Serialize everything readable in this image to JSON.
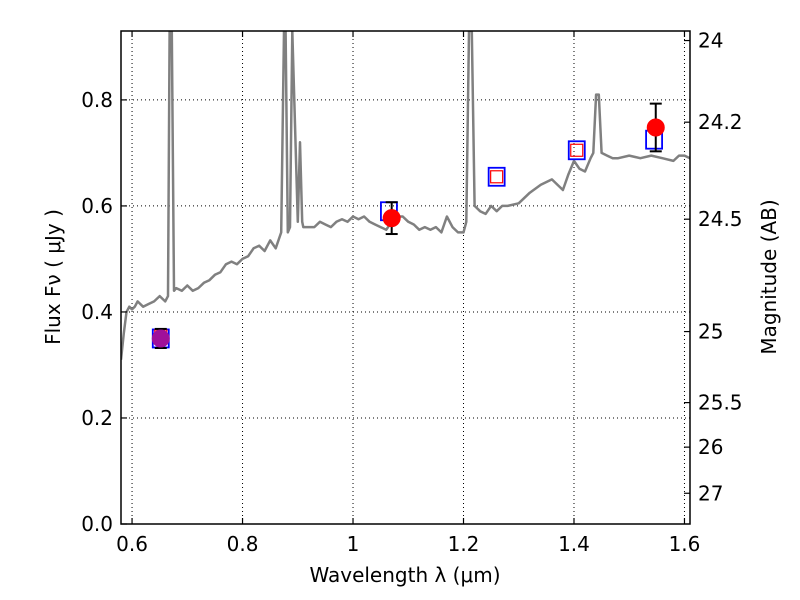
{
  "chart_data": {
    "type": "scatter",
    "title": "",
    "xlabel": "Wavelength  λ (μm)",
    "ylabel": "Flux  Fν  ( μJy )",
    "ylabel_right": "Magnitude (AB)",
    "xlim": [
      0.58,
      1.61
    ],
    "ylim": [
      0.0,
      0.93
    ],
    "grid": true,
    "x_ticks": [
      0.6,
      0.8,
      1.0,
      1.2,
      1.4,
      1.6
    ],
    "x_tick_labels": [
      "0.6",
      "0.8",
      "1",
      "1.2",
      "1.4",
      "1.6"
    ],
    "y_ticks": [
      0.0,
      0.2,
      0.4,
      0.6,
      0.8
    ],
    "y_tick_labels": [
      "0.0",
      "0.2",
      "0.4",
      "0.6",
      "0.8"
    ],
    "right_ticks": [
      {
        "label": "24",
        "flux": 0.912
      },
      {
        "label": "24.2",
        "flux": 0.758
      },
      {
        "label": "24.5",
        "flux": 0.575
      },
      {
        "label": "25",
        "flux": 0.363
      },
      {
        "label": "25.5",
        "flux": 0.229
      },
      {
        "label": "26",
        "flux": 0.145
      },
      {
        "label": "27",
        "flux": 0.058
      }
    ],
    "colors": {
      "model": "#808080",
      "observed": "#ff0000",
      "model_box": "#0000ff",
      "inner_box": "#ff0000",
      "errorbar": "#000000",
      "grid": "#000000"
    },
    "series": [
      {
        "name": "model spectrum",
        "kind": "line",
        "x": [
          0.58,
          0.585,
          0.59,
          0.595,
          0.6,
          0.605,
          0.61,
          0.62,
          0.63,
          0.64,
          0.65,
          0.66,
          0.665,
          0.668,
          0.672,
          0.676,
          0.68,
          0.69,
          0.7,
          0.71,
          0.72,
          0.73,
          0.74,
          0.75,
          0.76,
          0.77,
          0.78,
          0.79,
          0.8,
          0.81,
          0.82,
          0.83,
          0.84,
          0.85,
          0.86,
          0.87,
          0.875,
          0.878,
          0.882,
          0.886,
          0.89,
          0.9,
          0.904,
          0.908,
          0.91,
          0.92,
          0.93,
          0.94,
          0.95,
          0.96,
          0.97,
          0.98,
          0.99,
          1.0,
          1.01,
          1.02,
          1.03,
          1.04,
          1.05,
          1.06,
          1.07,
          1.08,
          1.09,
          1.1,
          1.11,
          1.12,
          1.13,
          1.14,
          1.15,
          1.16,
          1.17,
          1.18,
          1.19,
          1.2,
          1.205,
          1.21,
          1.215,
          1.22,
          1.23,
          1.24,
          1.25,
          1.26,
          1.27,
          1.28,
          1.3,
          1.32,
          1.34,
          1.36,
          1.38,
          1.39,
          1.4,
          1.41,
          1.42,
          1.43,
          1.435,
          1.44,
          1.445,
          1.45,
          1.46,
          1.47,
          1.48,
          1.5,
          1.52,
          1.54,
          1.56,
          1.58,
          1.59,
          1.6,
          1.61
        ],
        "y": [
          0.31,
          0.36,
          0.4,
          0.41,
          0.405,
          0.41,
          0.42,
          0.41,
          0.415,
          0.42,
          0.43,
          0.42,
          0.43,
          0.93,
          0.93,
          0.44,
          0.445,
          0.44,
          0.45,
          0.44,
          0.445,
          0.455,
          0.46,
          0.47,
          0.475,
          0.49,
          0.495,
          0.49,
          0.5,
          0.505,
          0.52,
          0.525,
          0.515,
          0.535,
          0.52,
          0.55,
          0.93,
          0.93,
          0.55,
          0.56,
          0.93,
          0.57,
          0.72,
          0.57,
          0.56,
          0.56,
          0.56,
          0.57,
          0.565,
          0.56,
          0.57,
          0.575,
          0.57,
          0.58,
          0.575,
          0.58,
          0.57,
          0.565,
          0.56,
          0.555,
          0.57,
          0.58,
          0.58,
          0.57,
          0.565,
          0.555,
          0.56,
          0.555,
          0.56,
          0.55,
          0.58,
          0.56,
          0.55,
          0.55,
          0.57,
          0.93,
          0.93,
          0.6,
          0.59,
          0.585,
          0.6,
          0.59,
          0.6,
          0.6,
          0.605,
          0.625,
          0.64,
          0.65,
          0.63,
          0.66,
          0.685,
          0.67,
          0.665,
          0.69,
          0.7,
          0.81,
          0.81,
          0.7,
          0.695,
          0.69,
          0.69,
          0.695,
          0.69,
          0.695,
          0.69,
          0.685,
          0.695,
          0.695,
          0.69
        ]
      },
      {
        "name": "model photometry",
        "kind": "square",
        "x": [
          0.652,
          1.065,
          1.26,
          1.405,
          1.545
        ],
        "y": [
          0.35,
          0.59,
          0.655,
          0.705,
          0.725
        ]
      },
      {
        "name": "filter marker",
        "kind": "small-square",
        "x": [
          0.652,
          1.26,
          1.405
        ],
        "y": [
          0.355,
          0.655,
          0.705
        ]
      },
      {
        "name": "observed",
        "kind": "point",
        "x": [
          0.652,
          1.07,
          1.548
        ],
        "y": [
          0.35,
          0.577,
          0.748
        ],
        "yerr": [
          0.018,
          0.03,
          0.045
        ]
      }
    ]
  }
}
